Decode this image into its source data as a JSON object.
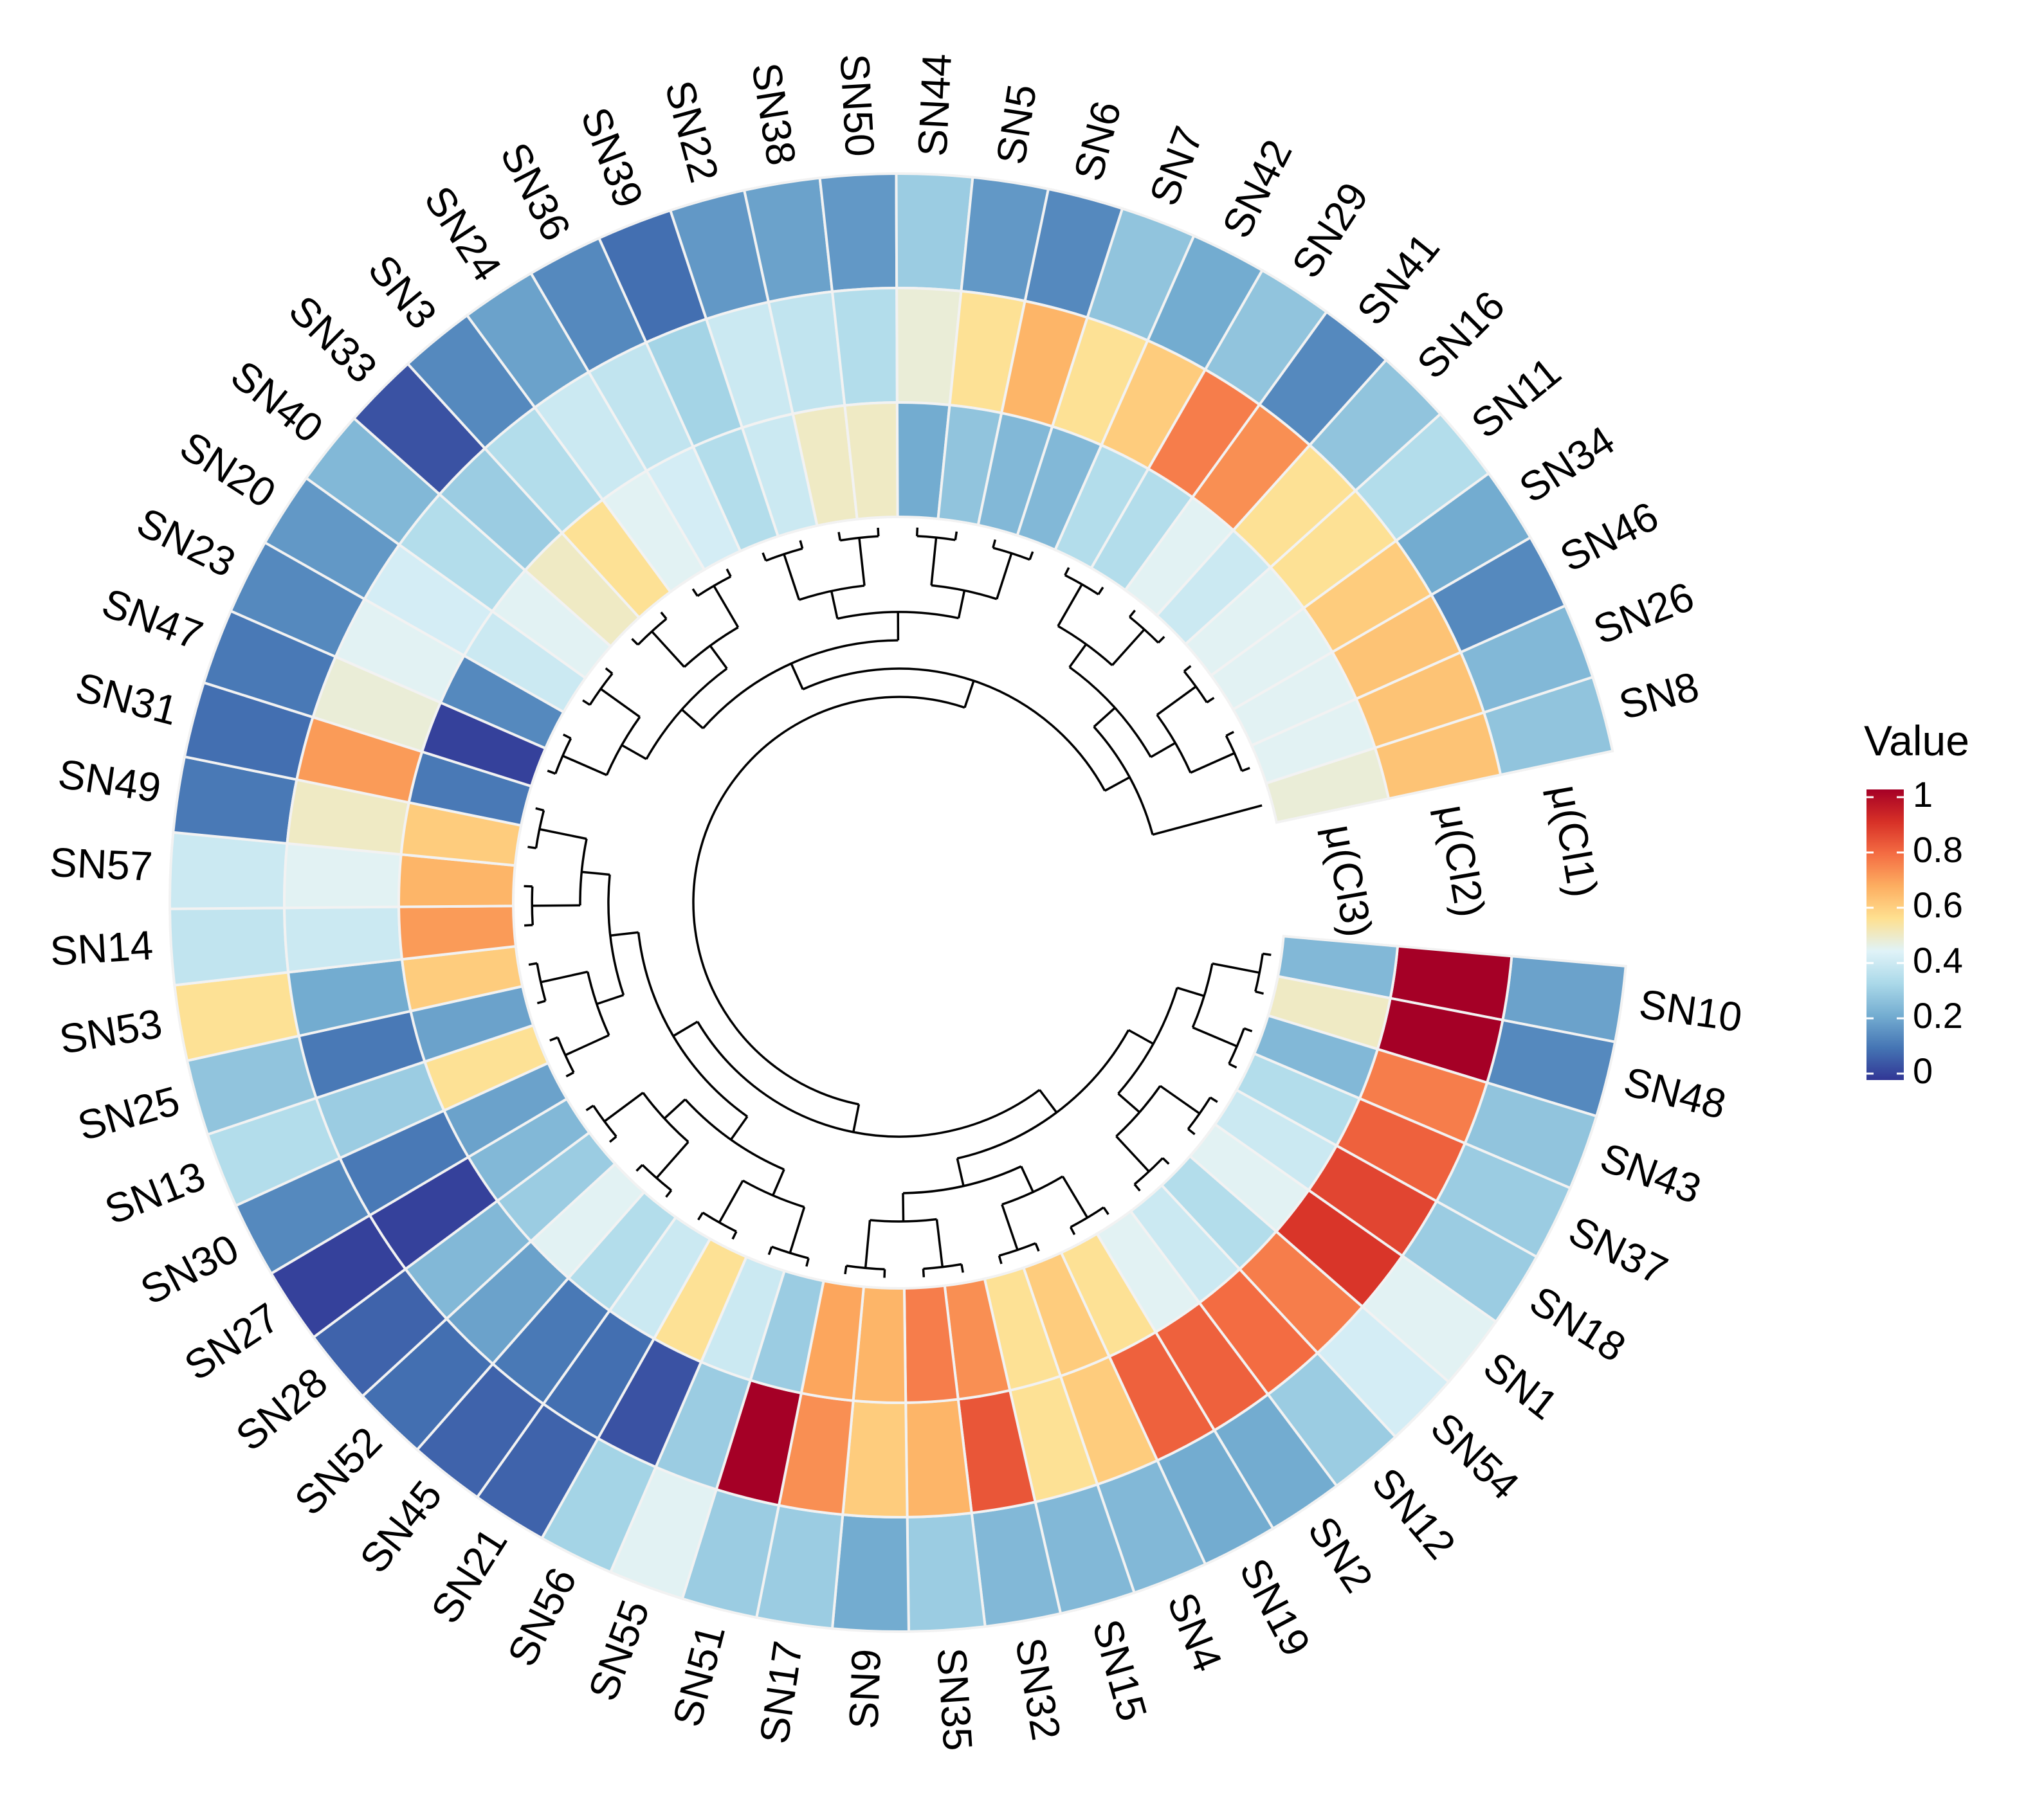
{
  "chart_data": {
    "type": "heatmap",
    "layout": "circular heatmap with dendrogram",
    "samples": [
      "SN10",
      "SN48",
      "SN43",
      "SN37",
      "SN18",
      "SN1",
      "SN54",
      "SN12",
      "SN2",
      "SN19",
      "SN4",
      "SN15",
      "SN32",
      "SN35",
      "SN9",
      "SN17",
      "SN51",
      "SN55",
      "SN56",
      "SN21",
      "SN45",
      "SN52",
      "SN28",
      "SN27",
      "SN30",
      "SN13",
      "SN25",
      "SN53",
      "SN14",
      "SN57",
      "SN49",
      "SN31",
      "SN47",
      "SN23",
      "SN20",
      "SN40",
      "SN33",
      "SN3",
      "SN24",
      "SN36",
      "SN39",
      "SN22",
      "SN38",
      "SN50",
      "SN44",
      "SN5",
      "SN6",
      "SN7",
      "SN42",
      "SN29",
      "SN41",
      "SN16",
      "SN11",
      "SN34",
      "SN46",
      "SN26",
      "SN8"
    ],
    "tracks": [
      "μ(Cl1)",
      "μ(Cl2)",
      "μ(Cl3)"
    ],
    "values": {
      "μ(Cl1)": [
        0.2,
        0.15,
        0.28,
        0.3,
        0.3,
        0.45,
        0.42,
        0.3,
        0.22,
        0.22,
        0.25,
        0.25,
        0.25,
        0.3,
        0.22,
        0.3,
        0.3,
        0.45,
        0.32,
        0.08,
        0.08,
        0.1,
        0.08,
        0.02,
        0.15,
        0.35,
        0.28,
        0.55,
        0.38,
        0.4,
        0.12,
        0.1,
        0.12,
        0.15,
        0.18,
        0.25,
        0.05,
        0.15,
        0.2,
        0.15,
        0.1,
        0.18,
        0.2,
        0.18,
        0.3,
        0.18,
        0.15,
        0.28,
        0.22,
        0.28,
        0.15,
        0.28,
        0.35,
        0.22,
        0.15,
        0.25,
        0.28
      ],
      "μ(Cl2)": [
        1.0,
        1.0,
        0.75,
        0.8,
        0.85,
        0.88,
        0.75,
        0.78,
        0.8,
        0.8,
        0.6,
        0.55,
        0.82,
        0.65,
        0.6,
        0.72,
        1.0,
        0.3,
        0.05,
        0.1,
        0.12,
        0.2,
        0.25,
        0.02,
        0.12,
        0.3,
        0.12,
        0.22,
        0.4,
        0.45,
        0.5,
        0.7,
        0.48,
        0.45,
        0.42,
        0.35,
        0.3,
        0.35,
        0.4,
        0.38,
        0.32,
        0.4,
        0.38,
        0.35,
        0.48,
        0.55,
        0.65,
        0.55,
        0.6,
        0.75,
        0.72,
        0.55,
        0.55,
        0.6,
        0.62,
        0.62,
        0.62
      ],
      "μ(Cl3)": [
        0.25,
        0.5,
        0.25,
        0.35,
        0.4,
        0.45,
        0.35,
        0.4,
        0.45,
        0.55,
        0.6,
        0.55,
        0.72,
        0.75,
        0.65,
        0.68,
        0.3,
        0.4,
        0.55,
        0.4,
        0.35,
        0.45,
        0.3,
        0.25,
        0.2,
        0.55,
        0.2,
        0.6,
        0.7,
        0.65,
        0.6,
        0.12,
        0.02,
        0.15,
        0.4,
        0.45,
        0.5,
        0.55,
        0.45,
        0.42,
        0.35,
        0.4,
        0.5,
        0.5,
        0.22,
        0.28,
        0.25,
        0.25,
        0.35,
        0.35,
        0.45,
        0.4,
        0.45,
        0.45,
        0.45,
        0.45,
        0.48
      ]
    },
    "legend": {
      "title": "Value",
      "ticks": [
        "0",
        "0.2",
        "0.4",
        "0.6",
        "0.8",
        "1"
      ],
      "colors": [
        "#313695",
        "#4575b4",
        "#74add1",
        "#abd9e9",
        "#e0f3f8",
        "#fee090",
        "#fdae61",
        "#f46d43",
        "#d73027",
        "#a50026"
      ]
    }
  }
}
